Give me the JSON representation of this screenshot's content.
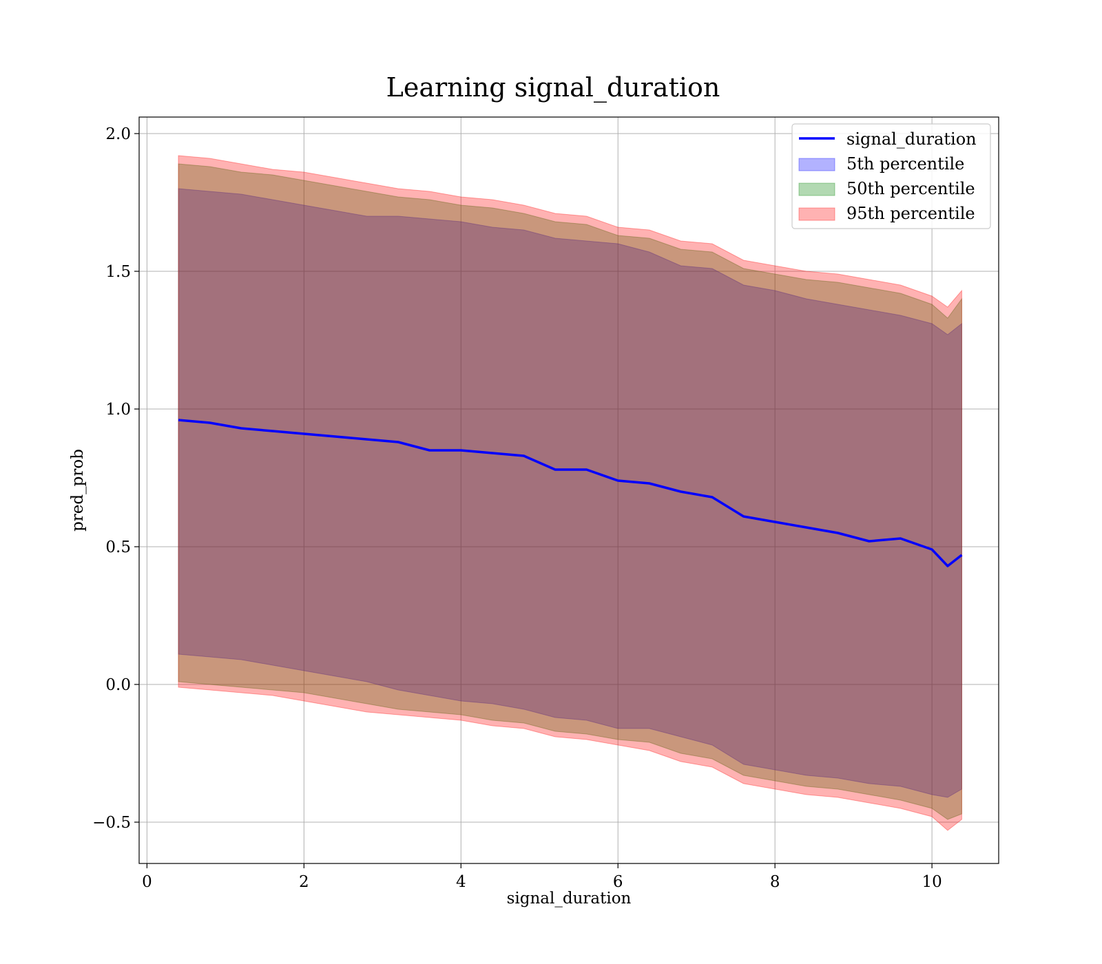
{
  "chart_data": {
    "type": "line",
    "title": "Learning signal_duration",
    "xlabel": "signal_duration",
    "ylabel": "pred_prob",
    "xlim": [
      -0.1,
      10.85
    ],
    "ylim": [
      -0.65,
      2.06
    ],
    "xticks": [
      0,
      2,
      4,
      6,
      8,
      10
    ],
    "xtick_labels": [
      "0",
      "2",
      "4",
      "6",
      "8",
      "10"
    ],
    "yticks": [
      -0.5,
      0.0,
      0.5,
      1.0,
      1.5,
      2.0
    ],
    "ytick_labels": [
      "−0.5",
      "0.0",
      "0.5",
      "1.0",
      "1.5",
      "2.0"
    ],
    "grid": true,
    "legend_position": "top-right",
    "colors": {
      "line": "#0000ff",
      "band_5th": "#0000ff",
      "band_50th": "#008000",
      "band_95th": "#ff0000"
    },
    "x": [
      0.4,
      0.8,
      1.2,
      1.6,
      2.0,
      2.4,
      2.8,
      3.2,
      3.6,
      4.0,
      4.4,
      4.8,
      5.2,
      5.6,
      6.0,
      6.4,
      6.8,
      7.2,
      7.6,
      8.0,
      8.4,
      8.8,
      9.2,
      9.6,
      10.0,
      10.2,
      10.38
    ],
    "series": [
      {
        "name": "signal_duration",
        "kind": "line",
        "values": [
          0.96,
          0.95,
          0.93,
          0.92,
          0.91,
          0.9,
          0.89,
          0.88,
          0.85,
          0.85,
          0.84,
          0.83,
          0.78,
          0.78,
          0.74,
          0.73,
          0.7,
          0.68,
          0.61,
          0.59,
          0.57,
          0.55,
          0.52,
          0.53,
          0.49,
          0.43,
          0.47
        ]
      },
      {
        "name": "5th percentile",
        "kind": "band",
        "lower": [
          0.11,
          0.1,
          0.09,
          0.07,
          0.05,
          0.03,
          0.01,
          -0.02,
          -0.04,
          -0.06,
          -0.07,
          -0.09,
          -0.12,
          -0.13,
          -0.16,
          -0.16,
          -0.19,
          -0.22,
          -0.29,
          -0.31,
          -0.33,
          -0.34,
          -0.36,
          -0.37,
          -0.4,
          -0.41,
          -0.38
        ],
        "upper": [
          1.8,
          1.79,
          1.78,
          1.76,
          1.74,
          1.72,
          1.7,
          1.7,
          1.69,
          1.68,
          1.66,
          1.65,
          1.62,
          1.61,
          1.6,
          1.57,
          1.52,
          1.51,
          1.45,
          1.43,
          1.4,
          1.38,
          1.36,
          1.34,
          1.31,
          1.27,
          1.31
        ]
      },
      {
        "name": "50th percentile",
        "kind": "band",
        "lower": [
          0.01,
          0.0,
          -0.01,
          -0.02,
          -0.03,
          -0.05,
          -0.07,
          -0.09,
          -0.1,
          -0.11,
          -0.13,
          -0.14,
          -0.17,
          -0.18,
          -0.2,
          -0.21,
          -0.25,
          -0.27,
          -0.33,
          -0.35,
          -0.37,
          -0.38,
          -0.4,
          -0.42,
          -0.45,
          -0.49,
          -0.47
        ],
        "upper": [
          1.89,
          1.88,
          1.86,
          1.85,
          1.83,
          1.81,
          1.79,
          1.77,
          1.76,
          1.74,
          1.73,
          1.71,
          1.68,
          1.67,
          1.63,
          1.62,
          1.58,
          1.57,
          1.51,
          1.49,
          1.47,
          1.46,
          1.44,
          1.42,
          1.38,
          1.33,
          1.4
        ]
      },
      {
        "name": "95th percentile",
        "kind": "band",
        "lower": [
          -0.01,
          -0.02,
          -0.03,
          -0.04,
          -0.06,
          -0.08,
          -0.1,
          -0.11,
          -0.12,
          -0.13,
          -0.15,
          -0.16,
          -0.19,
          -0.2,
          -0.22,
          -0.24,
          -0.28,
          -0.3,
          -0.36,
          -0.38,
          -0.4,
          -0.41,
          -0.43,
          -0.45,
          -0.48,
          -0.53,
          -0.49
        ],
        "upper": [
          1.92,
          1.91,
          1.89,
          1.87,
          1.86,
          1.84,
          1.82,
          1.8,
          1.79,
          1.77,
          1.76,
          1.74,
          1.71,
          1.7,
          1.66,
          1.65,
          1.61,
          1.6,
          1.54,
          1.52,
          1.5,
          1.49,
          1.47,
          1.45,
          1.41,
          1.37,
          1.43
        ]
      }
    ]
  }
}
